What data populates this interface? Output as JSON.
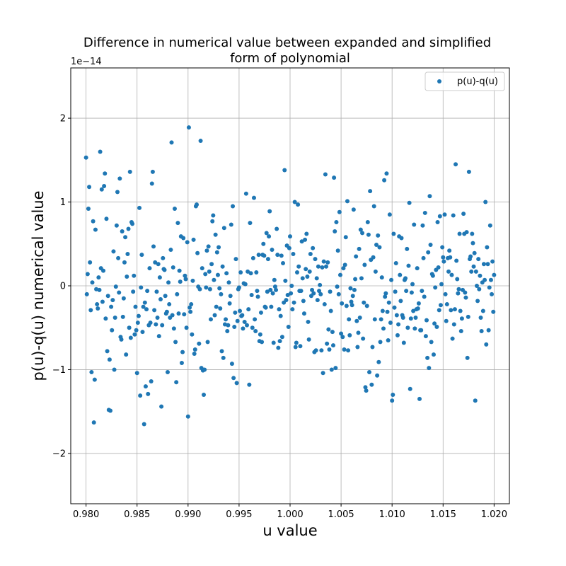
{
  "chart_data": {
    "type": "scatter",
    "title": "Difference in numerical value between expanded and simplified form of polynomial",
    "title_lines": [
      "Difference in numerical value between expanded and simplified",
      "form of polynomial"
    ],
    "xlabel": "u value",
    "ylabel": "p(u)-q(u) numerical value",
    "y_offset_text": "1e−14",
    "y_scale_exponent": -14,
    "xlim": [
      0.9785,
      1.0215
    ],
    "ylim": [
      -2.6,
      2.6
    ],
    "xticks": [
      0.98,
      0.985,
      0.99,
      0.995,
      1.0,
      1.005,
      1.01,
      1.015,
      1.02
    ],
    "xtick_labels": [
      "0.980",
      "0.985",
      "0.990",
      "0.995",
      "1.000",
      "1.005",
      "1.010",
      "1.015",
      "1.020"
    ],
    "yticks": [
      -2,
      -1,
      0,
      1,
      2
    ],
    "ytick_labels": [
      "−2",
      "−1",
      "0",
      "1",
      "2"
    ],
    "grid": true,
    "legend_position": "top-right",
    "series": [
      {
        "name": "p(u)-q(u)",
        "color": "#1f77b4",
        "marker": "circle",
        "x_start": 0.98,
        "x_end": 1.02,
        "y": [
          1.53,
          -0.1,
          0.14,
          0.92,
          1.18,
          0.28,
          -0.29,
          -1.03,
          0.04,
          0.77,
          -1.63,
          -1.12,
          0.67,
          -0.04,
          -0.22,
          -0.27,
          0.1,
          -0.05,
          1.6,
          0.21,
          1.15,
          -0.19,
          0.18,
          1.19,
          1.34,
          -0.39,
          0.8,
          -0.78,
          -0.12,
          -1.48,
          -0.88,
          -1.49,
          -0.25,
          -0.53,
          -0.17,
          0.41,
          -1.0,
          -0.38,
          -0.01,
          0.72,
          1.12,
          0.33,
          -0.08,
          1.28,
          -0.61,
          -0.64,
          0.65,
          -0.37,
          -0.15,
          0.28,
          0.58,
          -0.82,
          0.11,
          0.38,
          0.68,
          -0.5,
          1.36,
          -0.62,
          0.76,
          0.74,
          -0.07,
          0.12,
          -0.58,
          -0.25,
          -0.53,
          -1.04,
          -0.44,
          -0.36,
          0.93,
          -1.31,
          -0.02,
          0.37,
          -0.55,
          -0.25,
          -1.65,
          -0.2,
          -1.2,
          -0.28,
          -0.06,
          -1.29,
          -0.47,
          0.21,
          -0.44,
          -1.14,
          1.22,
          1.36,
          0.47,
          -0.29,
          0.28,
          -0.46,
          -0.07,
          -0.38,
          0.26,
          -0.6,
          0.1,
          -0.16,
          -1.44,
          -0.47,
          0.33,
          0.2,
          0.19,
          -0.12,
          -0.33,
          -0.31,
          -1.03,
          0.04,
          -0.22,
          -0.38,
          0.43,
          1.71,
          -0.35,
          0.22,
          -0.51,
          0.92,
          -0.67,
          -1.15,
          -0.1,
          0.75,
          -0.33,
          0.18,
          0.05,
          0.59,
          -0.92,
          -0.79,
          0.57,
          -0.34,
          0.12,
          0.08,
          -0.5,
          0.52,
          -1.56,
          1.89,
          -0.26,
          -0.31,
          -0.22,
          -0.58,
          0.06,
          0.55,
          -0.81,
          -0.76,
          0.95,
          0.97,
          0.39,
          -0.01,
          -0.69,
          -0.04,
          1.73,
          -0.98,
          0.21,
          -1.01,
          -1.3,
          -1.0,
          0.14,
          -0.02,
          0.42,
          -0.67,
          0.47,
          0.17,
          -0.04,
          -0.4,
          0.26,
          0.77,
          0.84,
          0.07,
          -0.35,
          0.61,
          -0.25,
          0.4,
          0.13,
          0.46,
          -0.03,
          -0.27,
          -0.1,
          -0.78,
          0.23,
          -0.86,
          0.69,
          -0.46,
          -0.4,
          0.15,
          -0.54,
          -0.47,
          0.04,
          -0.21,
          -0.12,
          0.73,
          -0.93,
          0.95,
          -1.1,
          -0.49,
          -0.32,
          0.32,
          -1.16,
          -0.42,
          -0.04,
          -0.02,
          -0.3,
          0.16,
          -0.36,
          -0.35,
          -0.51,
          0.03,
          -0.43,
          0.02,
          1.1,
          -0.47,
          0.17,
          -0.28,
          -1.18,
          0.75,
          0.15,
          -0.11,
          -0.5,
          0.33,
          1.05,
          -0.4,
          -0.54,
          0.16,
          -0.06,
          -0.13,
          0.37,
          -0.66,
          -0.58,
          -0.32,
          -0.67,
          0.37,
          0.5,
          0.36,
          -0.25,
          -0.26,
          0.63,
          -0.07,
          0.32,
          0.59,
          0.89,
          -0.05,
          -0.25,
          0.43,
          -0.09,
          -0.68,
          0.07,
          -0.01,
          -0.05,
          0.68,
          0.37,
          -0.74,
          -0.28,
          -0.66,
          -0.36,
          0.36,
          -0.61,
          0.27,
          -0.2,
          1.38,
          0.06,
          -0.17,
          0.48,
          -0.11,
          -0.49,
          0.45,
          0.59,
          -0.09,
          0.0,
          -0.28,
          0.38,
          -0.2,
          1.0,
          -0.73,
          -0.68,
          0.16,
          0.97,
          0.23,
          -0.06,
          -0.72,
          -0.06,
          0.53,
          0.09,
          -0.18,
          -0.33,
          0.55,
          0.2,
          0.62,
          0.11,
          -0.43,
          -0.64,
          0.17,
          0.38,
          -0.12,
          -0.05,
          0.45,
          -0.09,
          -0.79,
          0.32,
          -0.77,
          0.09,
          -0.17,
          0.23,
          -0.06,
          0.01,
          -0.1,
          -0.77,
          0.22,
          -1.04,
          0.29,
          -0.22,
          1.33,
          0.23,
          -0.69,
          0.28,
          -0.52,
          -0.76,
          -0.07,
          -0.3,
          -1.0,
          -0.55,
          -0.71,
          1.29,
          0.65,
          -0.98,
          0.76,
          -0.01,
          0.42,
          -0.1,
          0.88,
          0.13,
          -0.57,
          -0.21,
          -0.61,
          0.21,
          -0.76,
          0.25,
          0.58,
          -0.24,
          1.01,
          -0.77,
          -0.4,
          -0.59,
          -0.03,
          -0.19,
          -0.23,
          -0.12,
          0.91,
          -0.05,
          0.08,
          0.35,
          -0.42,
          -0.73,
          -0.56,
          0.44,
          -0.38,
          0.67,
          0.09,
          0.63,
          -0.63,
          -0.2,
          0.25,
          -1.21,
          -1.25,
          -0.24,
          0.76,
          0.61,
          -1.03,
          1.13,
          0.31,
          -1.18,
          -0.73,
          0.34,
          0.95,
          -0.4,
          0.17,
          0.49,
          -1.07,
          0.6,
          -0.91,
          0.46,
          -0.67,
          -0.4,
          0.1,
          -0.3,
          -0.51,
          1.26,
          -0.13,
          -0.09,
          1.34,
          -0.31,
          -0.65,
          -0.2,
          0.85,
          -0.44,
          0.07,
          -1.37,
          -1.3,
          0.62,
          -0.26,
          -0.07,
          0.27,
          -0.35,
          -0.59,
          -0.46,
          0.59,
          0.13,
          -0.18,
          0.57,
          -0.35,
          -0.38,
          -0.68,
          0.07,
          0.09,
          -0.06,
          0.44,
          -0.5,
          0.24,
          0.99,
          -1.23,
          -0.39,
          -0.08,
          0.02,
          -0.3,
          0.73,
          -0.51,
          -0.38,
          -0.28,
          0.21,
          -0.27,
          -0.21,
          -1.35,
          -0.53,
          -0.53,
          -0.06,
          0.72,
          0.33,
          -0.13,
          0.87,
          -0.6,
          -0.41,
          -0.86,
          0.4,
          -0.98,
          1.07,
          0.49,
          -0.67,
          0.14,
          0.12,
          -0.82,
          -0.45,
          -0.02,
          0.19,
          -0.49,
          0.76,
          0.22,
          -0.29,
          0.83,
          -0.23,
          0.02,
          0.46,
          0.34,
          0.29,
          0.85,
          -0.1,
          -0.42,
          -0.22,
          0.33,
          0.17,
          0.42,
          0.34,
          -0.29,
          0.13,
          -0.63,
          0.84,
          -0.46,
          -0.28,
          1.45,
          0.3,
          0.08,
          -0.09,
          -0.04,
          0.62,
          -0.3,
          -0.54,
          -0.39,
          -0.05,
          0.86,
          0.62,
          -0.08,
          -0.14,
          0.64,
          -0.86,
          -0.37,
          1.36,
          0.32,
          0.35,
          0.17,
          0.62,
          0.51,
          0.23,
          0.39,
          -1.37,
          0.17,
          0.0,
          -0.18,
          0.32,
          -0.04,
          0.12,
          -0.38,
          -0.54,
          0.04,
          -0.3,
          0.26,
          0.07,
          1.0,
          -0.7,
          0.46,
          0.26,
          -0.53,
          -0.02,
          0.72,
          0.07,
          -0.1,
          0.29,
          -0.31,
          0.13
        ]
      }
    ]
  }
}
